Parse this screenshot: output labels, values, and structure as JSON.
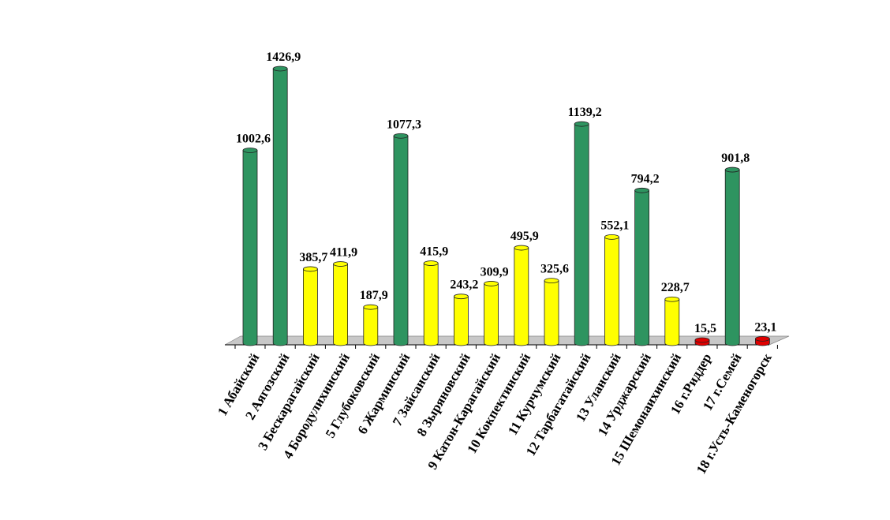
{
  "chart_data": {
    "type": "bar",
    "title": "",
    "xlabel": "",
    "ylabel": "",
    "ylim": [
      0,
      1450
    ],
    "grid": false,
    "legend": "none",
    "categories": [
      "1 Абайский",
      "2 Аягозский",
      "3 Бескарагайский",
      "4 Бородулихинский",
      "5 Глубоковский",
      "6 Жарминский",
      "7 Зайсанский",
      "8 Зыряновский",
      "9 Катон-Карагайский",
      "10 Кокпектинский",
      "11 Курчумский",
      "12 Тарбагатайский",
      "13 Уланский",
      "14 Урджарский",
      "15 Шемонаихинский",
      "16 г.Риддер",
      "17 г.Семей",
      "18 г.Усть-Каменогорск"
    ],
    "values": [
      1002.6,
      1426.9,
      385.7,
      411.9,
      187.9,
      1077.3,
      415.9,
      243.2,
      309.9,
      495.9,
      325.6,
      1139.2,
      552.1,
      794.2,
      228.7,
      15.5,
      901.8,
      23.1
    ],
    "value_labels": [
      "1002,6",
      "1426,9",
      "385,7",
      "411,9",
      "187,9",
      "1077,3",
      "415,9",
      "243,2",
      "309,9",
      "495,9",
      "325,6",
      "1139,2",
      "552,1",
      "794,2",
      "228,7",
      "15,5",
      "901,8",
      "23,1"
    ],
    "colors": {
      "high": "#2e9460",
      "mid": "#ffff00",
      "low": "#e00000"
    }
  }
}
